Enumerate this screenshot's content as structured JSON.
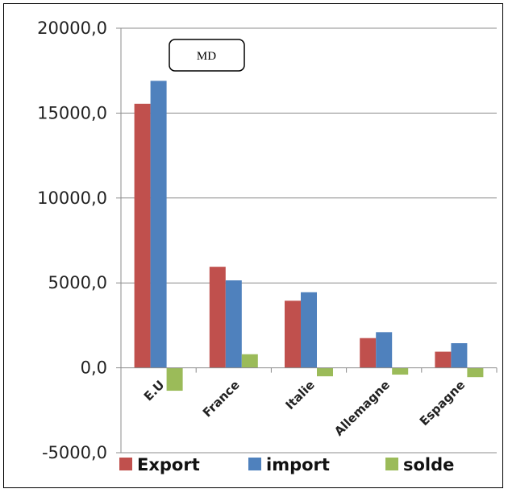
{
  "chart_data": {
    "type": "bar",
    "unit_label": "MD",
    "categories": [
      "E.U",
      "France",
      "Italie",
      "Allemagne",
      "Espagne"
    ],
    "series": [
      {
        "name": "Export",
        "color": "#c0504d",
        "values": [
          15550,
          5950,
          3950,
          1750,
          950
        ]
      },
      {
        "name": "import",
        "color": "#4f81bd",
        "values": [
          16900,
          5150,
          4450,
          2100,
          1450
        ]
      },
      {
        "name": "solde",
        "color": "#9bbb59",
        "values": [
          -1350,
          800,
          -500,
          -400,
          -550
        ]
      }
    ],
    "ylim": [
      -5000,
      20000
    ],
    "yticks": [
      "20000,0",
      "15000,0",
      "10000,0",
      "5000,0",
      "0,0",
      "-5000,0"
    ],
    "ytick_values": [
      20000,
      15000,
      10000,
      5000,
      0,
      -5000
    ],
    "grid": true,
    "legend_position": "bottom"
  }
}
